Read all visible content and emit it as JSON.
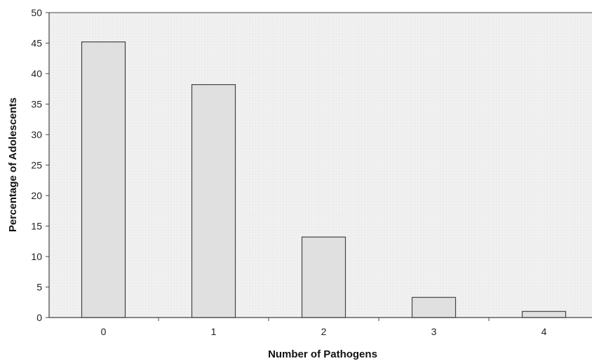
{
  "chart_data": {
    "type": "bar",
    "title": "",
    "xlabel": "Number of Pathogens",
    "ylabel": "Percentage of Adolescents",
    "categories": [
      "0",
      "1",
      "2",
      "3",
      "4"
    ],
    "values": [
      45.2,
      38.2,
      13.2,
      3.3,
      1.0
    ],
    "ylim": [
      0,
      50
    ],
    "yticks": [
      0,
      5,
      10,
      15,
      20,
      25,
      30,
      35,
      40,
      45,
      50
    ],
    "grid": true,
    "legend": "none",
    "colors": {
      "bar_fill": "#e0e0e0",
      "bar_stroke": "#444444",
      "plot_background": "#ececec",
      "grid": "#f8f8f8",
      "axis": "#444444"
    }
  }
}
